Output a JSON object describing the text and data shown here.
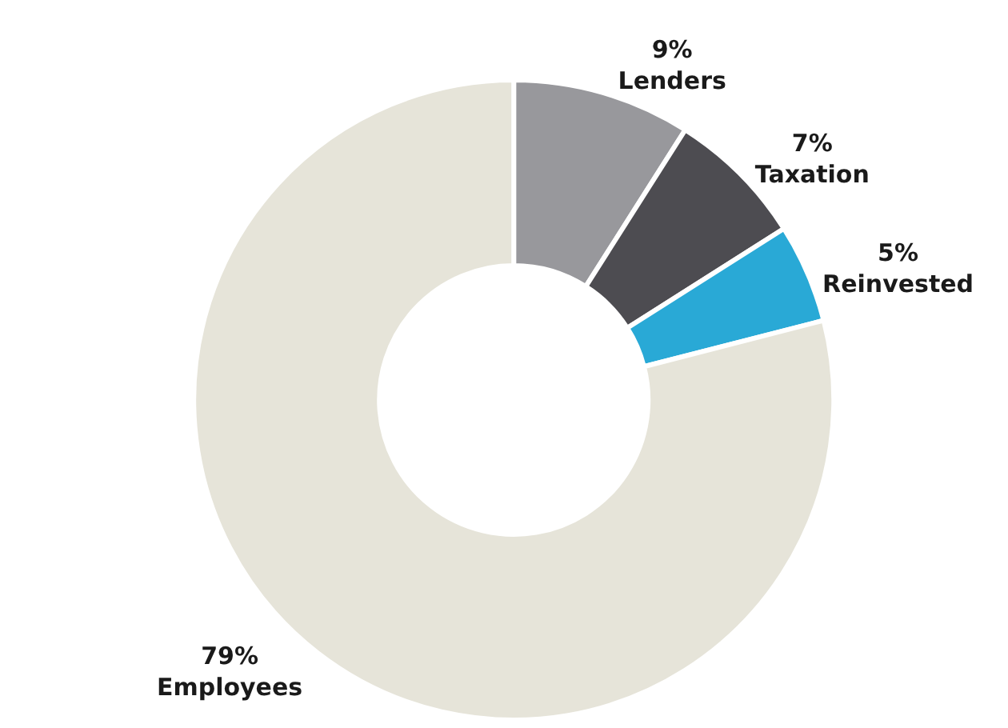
{
  "chart_data": {
    "type": "donut",
    "categories": [
      "Lenders",
      "Taxation",
      "Reinvested",
      "Employees"
    ],
    "values": [
      9,
      7,
      5,
      79
    ],
    "value_labels": [
      "9%",
      "7%",
      "5%",
      "79%"
    ],
    "colors": [
      "#98989c",
      "#4d4c51",
      "#29a9d6",
      "#e6e4d9"
    ]
  }
}
